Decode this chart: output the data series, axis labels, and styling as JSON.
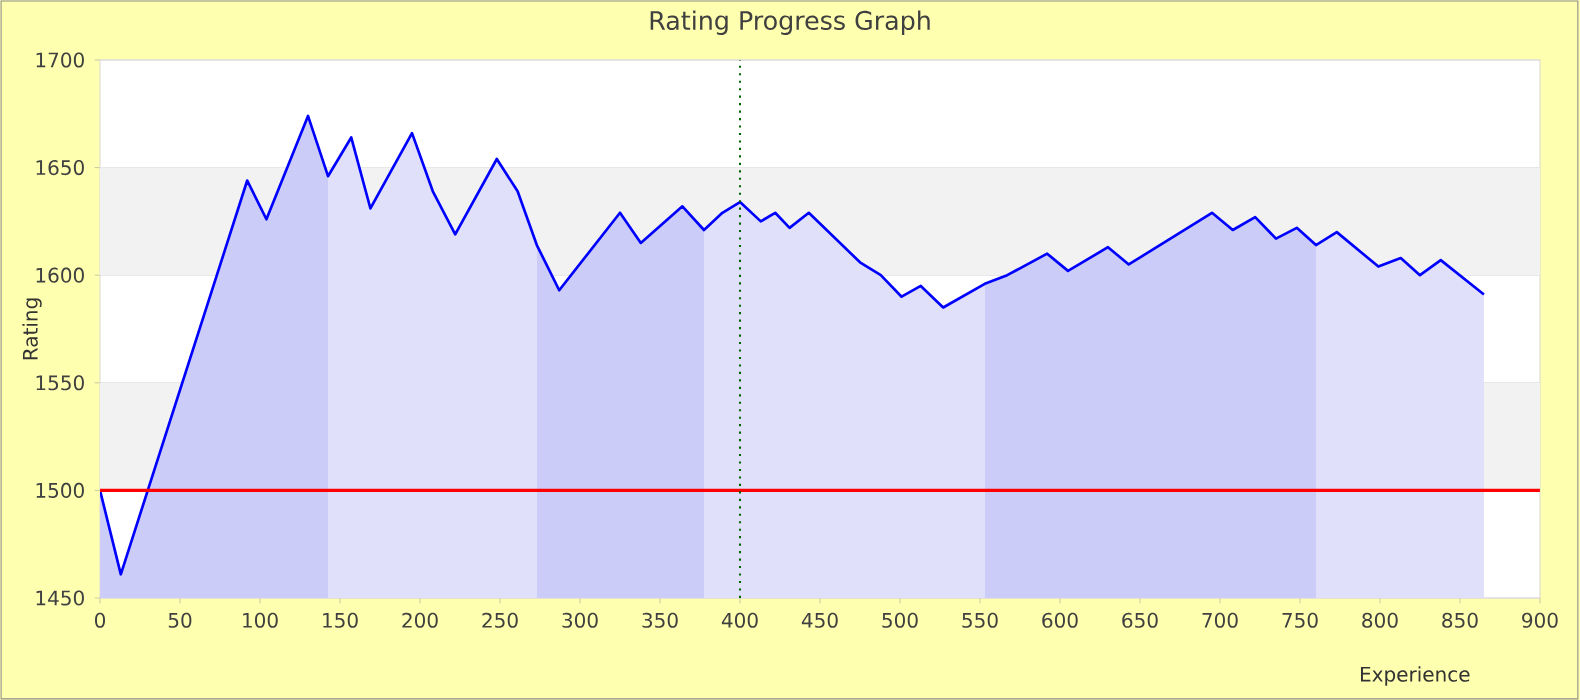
{
  "chart_data": {
    "type": "line",
    "title": "Rating Progress Graph",
    "xlabel": "Experience",
    "ylabel": "Rating",
    "xlim": [
      0,
      900
    ],
    "xticks": [
      0,
      50,
      100,
      150,
      200,
      250,
      300,
      350,
      400,
      450,
      500,
      550,
      600,
      650,
      700,
      750,
      800,
      850,
      900
    ],
    "ylim": [
      1450,
      1700
    ],
    "yticks": [
      1450,
      1500,
      1550,
      1600,
      1650,
      1700
    ],
    "grid": "y",
    "series": [
      {
        "type": "area",
        "color": "#ccccf8",
        "x": [
          0,
          13,
          92,
          104,
          130,
          142.5
        ],
        "values": [
          1500,
          1461,
          1644,
          1626,
          1674,
          1646
        ]
      },
      {
        "type": "area",
        "color": "#e0e0fa",
        "x": [
          142.5,
          157,
          169,
          195,
          208,
          222,
          248,
          261,
          273
        ],
        "values": [
          1646,
          1664,
          1631,
          1666,
          1639,
          1619,
          1654,
          1639,
          1614
        ]
      },
      {
        "type": "area",
        "color": "#ccccf8",
        "x": [
          273,
          287,
          325,
          338,
          364,
          377.5
        ],
        "values": [
          1614,
          1593,
          1629,
          1615,
          1632,
          1621
        ]
      },
      {
        "type": "area",
        "color": "#e0e0fa",
        "x": [
          377.5,
          389,
          400,
          413,
          422,
          431,
          443,
          475,
          488,
          501,
          513,
          527,
          553
        ],
        "values": [
          1621,
          1629,
          1634,
          1625,
          1629,
          1622,
          1629,
          1606,
          1600,
          1590,
          1595,
          1585,
          1596
        ]
      },
      {
        "type": "area",
        "color": "#ccccf8",
        "x": [
          553,
          567,
          592,
          605,
          630,
          643,
          695,
          708,
          722,
          735,
          748,
          760
        ],
        "values": [
          1596,
          1600,
          1610,
          1602,
          1613,
          1605,
          1629,
          1621,
          1627,
          1617,
          1622,
          1614
        ]
      },
      {
        "type": "area",
        "color": "#e0e0fa",
        "x": [
          760,
          773,
          799,
          813,
          825,
          838,
          865
        ],
        "values": [
          1614,
          1620,
          1604,
          1608,
          1600,
          1607,
          1591
        ]
      },
      {
        "color": "#0000ff",
        "x": [
          0,
          13,
          92,
          104,
          130,
          142.5,
          157,
          169,
          195,
          208,
          222,
          248,
          261,
          273,
          287,
          325,
          338,
          364,
          377.5,
          389,
          400,
          413,
          422,
          431,
          443,
          475,
          488,
          501,
          513,
          527,
          553,
          567,
          592,
          605,
          630,
          643,
          695,
          708,
          722,
          735,
          748,
          760,
          773,
          799,
          813,
          825,
          838,
          865
        ],
        "values": [
          1500,
          1461,
          1644,
          1626,
          1674,
          1646,
          1664,
          1631,
          1666,
          1639,
          1619,
          1654,
          1639,
          1614,
          1593,
          1629,
          1615,
          1632,
          1621,
          1629,
          1634,
          1625,
          1629,
          1622,
          1629,
          1606,
          1600,
          1590,
          1595,
          1585,
          1596,
          1600,
          1610,
          1602,
          1613,
          1605,
          1629,
          1621,
          1627,
          1617,
          1622,
          1614,
          1620,
          1604,
          1608,
          1600,
          1607,
          1591
        ]
      }
    ],
    "ref_lines": [
      {
        "axis": "y",
        "value": 1500,
        "color": "#ff0000",
        "line_style": "solid"
      },
      {
        "axis": "x",
        "value": 400,
        "color": "#006400",
        "line_style": "dotted"
      }
    ]
  }
}
